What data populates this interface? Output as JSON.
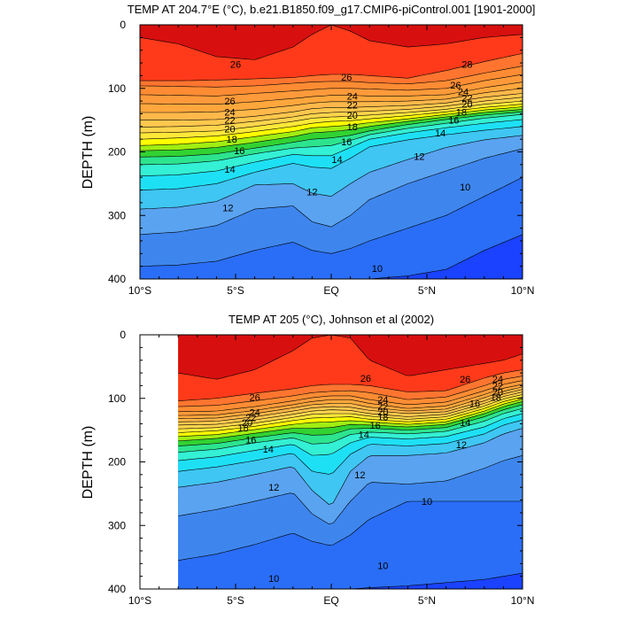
{
  "chart_data": [
    {
      "type": "filled-contour",
      "title": "TEMP AT 204.7°E (°C), b.e21.B1850.f09_g17.CMIP6-piControl.001 [1901-2000]",
      "ylabel": "DEPTH (m)",
      "xlabel": "",
      "xlim": [
        -10,
        10
      ],
      "ylim": [
        400,
        0
      ],
      "x_tick_values": [
        -10,
        -5,
        0,
        5,
        10
      ],
      "x_tick_labels": [
        "10°S",
        "5°S",
        "EQ",
        "5°N",
        "10°N"
      ],
      "y_tick_values": [
        0,
        100,
        200,
        300,
        400
      ],
      "y_tick_labels": [
        "0",
        "100",
        "200",
        "300",
        "400"
      ],
      "data_x_range": [
        -10,
        10
      ],
      "contour_interval": 1,
      "isotherm_depths": {
        "lat": [
          -10,
          -8,
          -6,
          -4,
          -2,
          -1,
          0,
          1,
          2,
          4,
          6,
          8,
          10
        ],
        "27": [
          20,
          30,
          50,
          55,
          35,
          15,
          0,
          10,
          25,
          35,
          30,
          20,
          15
        ],
        "26": [
          88,
          88,
          87,
          85,
          83,
          80,
          78,
          78,
          80,
          84,
          72,
          58,
          45
        ],
        "25": [
          96,
          97,
          98,
          96,
          92,
          90,
          89,
          89,
          91,
          93,
          88,
          76,
          65
        ],
        "24": [
          110,
          111,
          112,
          108,
          104,
          102,
          100,
          100,
          101,
          103,
          100,
          88,
          78
        ],
        "23": [
          124,
          125,
          125,
          121,
          116,
          113,
          111,
          111,
          112,
          112,
          110,
          99,
          90
        ],
        "22": [
          138,
          138,
          137,
          133,
          127,
          123,
          121,
          121,
          121,
          120,
          117,
          107,
          100
        ],
        "21": [
          150,
          150,
          149,
          144,
          137,
          132,
          130,
          130,
          129,
          127,
          123,
          114,
          108
        ],
        "20": [
          161,
          160,
          158,
          152,
          145,
          140,
          138,
          137,
          136,
          133,
          128,
          120,
          114
        ],
        "19": [
          170,
          169,
          167,
          160,
          152,
          147,
          145,
          144,
          142,
          138,
          133,
          125,
          120
        ],
        "18": [
          180,
          178,
          175,
          168,
          160,
          155,
          152,
          151,
          148,
          143,
          137,
          130,
          125
        ],
        "17": [
          190,
          188,
          184,
          176,
          168,
          162,
          160,
          158,
          154,
          148,
          141,
          134,
          129
        ],
        "16": [
          198,
          197,
          193,
          185,
          176,
          170,
          168,
          165,
          160,
          152,
          145,
          138,
          133
        ],
        "15": [
          208,
          207,
          203,
          194,
          185,
          180,
          178,
          174,
          167,
          157,
          149,
          142,
          137
        ],
        "14": [
          220,
          219,
          214,
          203,
          194,
          192,
          190,
          182,
          173,
          163,
          155,
          147,
          141
        ],
        "13": [
          238,
          236,
          230,
          216,
          204,
          206,
          206,
          193,
          180,
          170,
          162,
          155,
          149
        ],
        "12": [
          260,
          258,
          250,
          232,
          218,
          224,
          226,
          210,
          192,
          181,
          173,
          166,
          160
        ],
        "11": [
          290,
          287,
          278,
          252,
          250,
          265,
          270,
          250,
          232,
          212,
          193,
          181,
          174
        ],
        "10": [
          330,
          326,
          316,
          290,
          285,
          310,
          318,
          300,
          275,
          250,
          230,
          210,
          195
        ],
        "9": [
          380,
          378,
          372,
          355,
          342,
          355,
          360,
          352,
          340,
          320,
          300,
          270,
          240
        ],
        "8": [
          400,
          400,
          400,
          400,
          400,
          400,
          400,
          400,
          400,
          395,
          385,
          355,
          330
        ]
      },
      "contour_labels": [
        {
          "lat": -5.0,
          "depth": 62,
          "text": "26"
        },
        {
          "lat": 0.8,
          "depth": 82,
          "text": "26"
        },
        {
          "lat": 7.1,
          "depth": 62,
          "text": "28"
        },
        {
          "lat": 6.5,
          "depth": 95,
          "text": "26"
        },
        {
          "lat": 6.9,
          "depth": 105,
          "text": "24"
        },
        {
          "lat": 7.1,
          "depth": 115,
          "text": "22"
        },
        {
          "lat": 7.1,
          "depth": 125,
          "text": "20"
        },
        {
          "lat": 6.8,
          "depth": 137,
          "text": "18"
        },
        {
          "lat": 6.4,
          "depth": 150,
          "text": "16"
        },
        {
          "lat": 5.7,
          "depth": 170,
          "text": "14"
        },
        {
          "lat": -5.3,
          "depth": 120,
          "text": "26"
        },
        {
          "lat": -5.3,
          "depth": 137,
          "text": "24"
        },
        {
          "lat": -5.3,
          "depth": 150,
          "text": "22"
        },
        {
          "lat": -5.3,
          "depth": 164,
          "text": "20"
        },
        {
          "lat": -5.2,
          "depth": 180,
          "text": "18"
        },
        {
          "lat": 1.1,
          "depth": 112,
          "text": "24"
        },
        {
          "lat": 1.1,
          "depth": 126,
          "text": "22"
        },
        {
          "lat": 1.1,
          "depth": 142,
          "text": "20"
        },
        {
          "lat": 1.1,
          "depth": 160,
          "text": "18"
        },
        {
          "lat": 0.8,
          "depth": 184,
          "text": "16"
        },
        {
          "lat": 0.3,
          "depth": 212,
          "text": "14"
        },
        {
          "lat": -1.0,
          "depth": 263,
          "text": "12"
        },
        {
          "lat": -4.8,
          "depth": 198,
          "text": "16"
        },
        {
          "lat": -5.3,
          "depth": 227,
          "text": "14"
        },
        {
          "lat": -5.4,
          "depth": 288,
          "text": "12"
        },
        {
          "lat": 4.6,
          "depth": 207,
          "text": "12"
        },
        {
          "lat": 7.0,
          "depth": 255,
          "text": "10"
        },
        {
          "lat": 2.4,
          "depth": 383,
          "text": "10"
        }
      ]
    },
    {
      "type": "filled-contour",
      "title": "TEMP AT 205 (°C), Johnson et al (2002)",
      "ylabel": "DEPTH (m)",
      "xlabel": "",
      "xlim": [
        -10,
        10
      ],
      "ylim": [
        400,
        0
      ],
      "x_tick_values": [
        -10,
        -5,
        0,
        5,
        10
      ],
      "x_tick_labels": [
        "10°S",
        "5°S",
        "EQ",
        "5°N",
        "10°N"
      ],
      "y_tick_values": [
        0,
        100,
        200,
        300,
        400
      ],
      "y_tick_labels": [
        "0",
        "100",
        "200",
        "300",
        "400"
      ],
      "data_x_range": [
        -8,
        10
      ],
      "contour_interval": 1,
      "isotherm_depths": {
        "lat": [
          -8,
          -6,
          -4,
          -2,
          -1,
          0,
          1,
          2,
          4,
          6,
          8,
          9,
          10
        ],
        "27": [
          60,
          70,
          55,
          25,
          5,
          0,
          5,
          40,
          65,
          55,
          45,
          40,
          30
        ],
        "26": [
          104,
          100,
          92,
          85,
          80,
          78,
          78,
          80,
          90,
          88,
          68,
          60,
          55
        ],
        "25": [
          113,
          111,
          104,
          96,
          91,
          89,
          88,
          91,
          102,
          98,
          80,
          70,
          65
        ],
        "24": [
          121,
          120,
          113,
          104,
          99,
          96,
          96,
          102,
          110,
          106,
          88,
          78,
          72
        ],
        "23": [
          127,
          126,
          119,
          110,
          105,
          102,
          102,
          108,
          116,
          112,
          94,
          84,
          78
        ],
        "22": [
          132,
          131,
          124,
          115,
          110,
          108,
          108,
          114,
          120,
          117,
          99,
          89,
          82
        ],
        "21": [
          137,
          136,
          129,
          120,
          115,
          113,
          114,
          119,
          124,
          121,
          104,
          93,
          86
        ],
        "20": [
          142,
          141,
          134,
          125,
          120,
          118,
          119,
          124,
          129,
          125,
          108,
          97,
          90
        ],
        "19": [
          148,
          146,
          139,
          130,
          125,
          124,
          124,
          128,
          133,
          129,
          112,
          101,
          94
        ],
        "18": [
          154,
          151,
          144,
          135,
          131,
          130,
          129,
          133,
          137,
          133,
          116,
          105,
          98
        ],
        "17": [
          160,
          157,
          149,
          141,
          138,
          137,
          135,
          137,
          141,
          137,
          120,
          109,
          101
        ],
        "16": [
          167,
          163,
          155,
          147,
          147,
          146,
          141,
          142,
          145,
          141,
          124,
          113,
          105
        ],
        "15": [
          175,
          171,
          162,
          154,
          158,
          157,
          148,
          147,
          150,
          146,
          129,
          118,
          110
        ],
        "14": [
          185,
          180,
          170,
          162,
          172,
          170,
          157,
          153,
          156,
          152,
          136,
          124,
          116
        ],
        "13": [
          198,
          192,
          182,
          172,
          190,
          188,
          170,
          161,
          164,
          160,
          145,
          132,
          124
        ],
        "12": [
          215,
          208,
          198,
          186,
          215,
          220,
          188,
          172,
          175,
          171,
          156,
          142,
          134
        ],
        "11": [
          240,
          232,
          220,
          207,
          245,
          270,
          215,
          190,
          190,
          186,
          170,
          156,
          147
        ],
        "10": [
          285,
          275,
          262,
          248,
          282,
          300,
          262,
          232,
          235,
          230,
          210,
          198,
          190
        ],
        "9": [
          355,
          345,
          330,
          312,
          325,
          332,
          315,
          290,
          262,
          262,
          262,
          262,
          262
        ],
        "8": [
          400,
          400,
          400,
          400,
          400,
          400,
          400,
          398,
          395,
          390,
          385,
          380,
          375
        ]
      },
      "contour_labels": [
        {
          "lat": -4.0,
          "depth": 98,
          "text": "26"
        },
        {
          "lat": 1.8,
          "depth": 68,
          "text": "26"
        },
        {
          "lat": 7.0,
          "depth": 70,
          "text": "26"
        },
        {
          "lat": 8.7,
          "depth": 70,
          "text": "24"
        },
        {
          "lat": 8.7,
          "depth": 80,
          "text": "22"
        },
        {
          "lat": 8.7,
          "depth": 90,
          "text": "20"
        },
        {
          "lat": 8.6,
          "depth": 98,
          "text": "18"
        },
        {
          "lat": 7.5,
          "depth": 108,
          "text": "16"
        },
        {
          "lat": 7.0,
          "depth": 138,
          "text": "14"
        },
        {
          "lat": 6.8,
          "depth": 173,
          "text": "12"
        },
        {
          "lat": 5.0,
          "depth": 262,
          "text": "10"
        },
        {
          "lat": 2.7,
          "depth": 363,
          "text": "10"
        },
        {
          "lat": -3.0,
          "depth": 383,
          "text": "10"
        },
        {
          "lat": -4.0,
          "depth": 122,
          "text": "24"
        },
        {
          "lat": -4.2,
          "depth": 130,
          "text": "22"
        },
        {
          "lat": -4.4,
          "depth": 138,
          "text": "20"
        },
        {
          "lat": -4.6,
          "depth": 146,
          "text": "18"
        },
        {
          "lat": -4.2,
          "depth": 165,
          "text": "16"
        },
        {
          "lat": -3.3,
          "depth": 180,
          "text": "14"
        },
        {
          "lat": -3.0,
          "depth": 240,
          "text": "12"
        },
        {
          "lat": 2.7,
          "depth": 102,
          "text": "24"
        },
        {
          "lat": 2.7,
          "depth": 112,
          "text": "22"
        },
        {
          "lat": 2.7,
          "depth": 121,
          "text": "20"
        },
        {
          "lat": 2.7,
          "depth": 129,
          "text": "18"
        },
        {
          "lat": 2.3,
          "depth": 142,
          "text": "16"
        },
        {
          "lat": 1.7,
          "depth": 157,
          "text": "14"
        },
        {
          "lat": 1.5,
          "depth": 220,
          "text": "12"
        }
      ]
    }
  ]
}
